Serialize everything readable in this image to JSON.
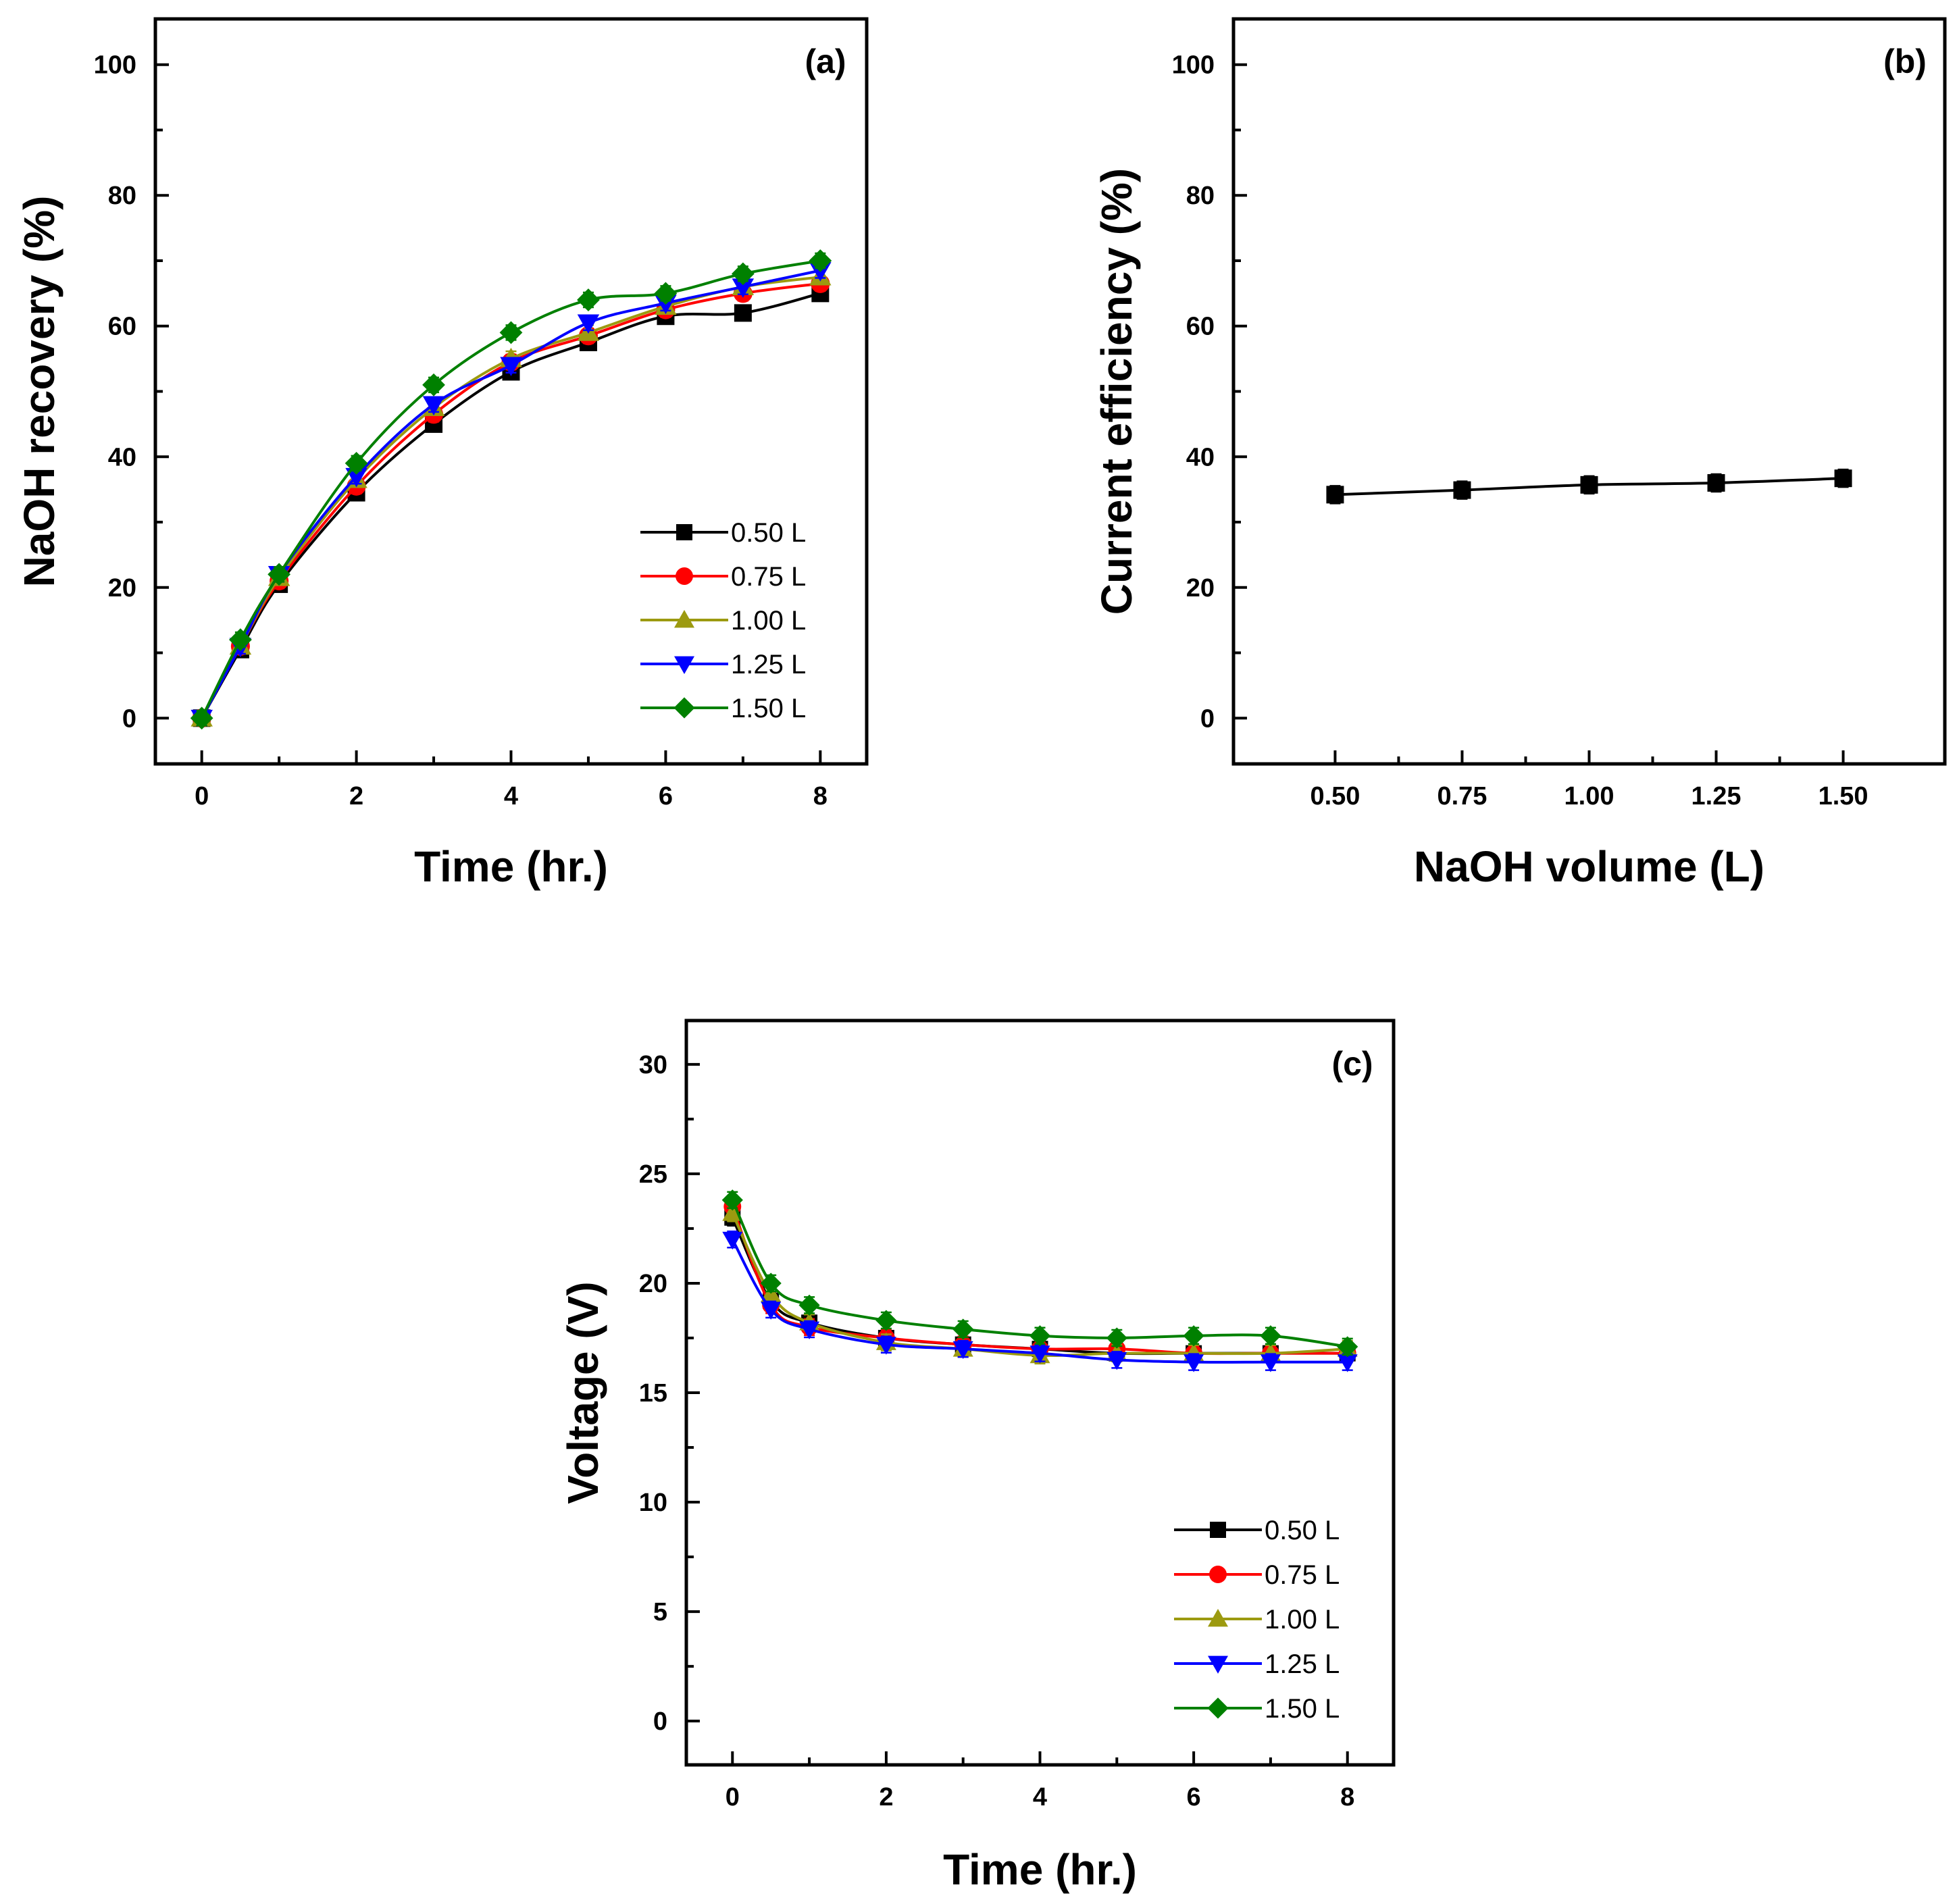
{
  "chart_data": [
    {
      "type": "line",
      "panel_label": "(a)",
      "xlabel": "Time (hr.)",
      "ylabel": "NaOH recovery (%)",
      "xlim": [
        -0.6,
        8.6
      ],
      "ylim": [
        -7,
        107
      ],
      "xticks": [
        0,
        2,
        4,
        6,
        8
      ],
      "xtick_labels": [
        "0",
        "2",
        "4",
        "6",
        "8"
      ],
      "yticks": [
        0,
        20,
        40,
        60,
        80,
        100
      ],
      "ytick_labels": [
        "0",
        "20",
        "40",
        "60",
        "80",
        "100"
      ],
      "x": [
        0,
        0.5,
        1,
        2,
        3,
        4,
        5,
        6,
        7,
        8
      ],
      "legend_position": "bottom-right",
      "series": [
        {
          "name": "0.50 L",
          "color": "#000000",
          "marker": "square",
          "values": [
            0,
            10.5,
            20.5,
            34.5,
            45,
            53,
            57.5,
            61.5,
            62,
            65
          ]
        },
        {
          "name": "0.75 L",
          "color": "#ff0000",
          "marker": "circle",
          "values": [
            0,
            11,
            21,
            35.5,
            46.5,
            54.5,
            58.5,
            62.5,
            65,
            66.5
          ]
        },
        {
          "name": "1.00 L",
          "color": "#9c9a10",
          "marker": "triangle-up",
          "values": [
            0,
            11,
            21.5,
            36.5,
            47.5,
            55,
            59,
            63,
            66,
            67.5
          ]
        },
        {
          "name": "1.25 L",
          "color": "#0000ff",
          "marker": "triangle-down",
          "values": [
            0,
            11,
            22,
            37,
            48,
            54,
            60.5,
            63.5,
            66,
            68.5
          ]
        },
        {
          "name": "1.50 L",
          "color": "#008000",
          "marker": "diamond",
          "values": [
            0,
            12,
            22,
            39,
            51,
            59,
            64,
            65,
            68,
            70
          ]
        }
      ]
    },
    {
      "type": "line",
      "panel_label": "(b)",
      "xlabel": "NaOH volume (L)",
      "ylabel": "Current efficiency (%)",
      "xlim": [
        0.3,
        1.7
      ],
      "ylim": [
        -7,
        107
      ],
      "xticks": [
        0.5,
        0.75,
        1.0,
        1.25,
        1.5
      ],
      "xtick_labels": [
        "0.50",
        "0.75",
        "1.00",
        "1.25",
        "1.50"
      ],
      "yticks": [
        0,
        20,
        40,
        60,
        80,
        100
      ],
      "ytick_labels": [
        "0",
        "20",
        "40",
        "60",
        "80",
        "100"
      ],
      "x": [
        0.5,
        0.75,
        1.0,
        1.25,
        1.5
      ],
      "series": [
        {
          "name": "Current efficiency",
          "color": "#000000",
          "marker": "square",
          "values": [
            34.2,
            34.9,
            35.7,
            36.0,
            36.7
          ]
        }
      ]
    },
    {
      "type": "line",
      "panel_label": "(c)",
      "xlabel": "Time (hr.)",
      "ylabel": "Voltage (V)",
      "xlim": [
        -0.6,
        8.6
      ],
      "ylim": [
        -2,
        32
      ],
      "xticks": [
        0,
        2,
        4,
        6,
        8
      ],
      "xtick_labels": [
        "0",
        "2",
        "4",
        "6",
        "8"
      ],
      "yticks": [
        0,
        5,
        10,
        15,
        20,
        25,
        30
      ],
      "ytick_labels": [
        "0",
        "5",
        "10",
        "15",
        "20",
        "25",
        "30"
      ],
      "x": [
        0,
        0.5,
        1,
        2,
        3,
        4,
        5,
        6,
        7,
        8
      ],
      "legend_position": "bottom-right",
      "series": [
        {
          "name": "0.50 L",
          "color": "#000000",
          "marker": "square",
          "values": [
            23.0,
            19.2,
            18.2,
            17.5,
            17.2,
            17.0,
            16.8,
            16.8,
            16.8,
            16.8
          ]
        },
        {
          "name": "0.75 L",
          "color": "#ff0000",
          "marker": "circle",
          "values": [
            23.5,
            19.0,
            18.0,
            17.5,
            17.2,
            17.0,
            17.0,
            16.8,
            16.8,
            16.8
          ]
        },
        {
          "name": "1.00 L",
          "color": "#9c9a10",
          "marker": "triangle-up",
          "values": [
            23.2,
            19.5,
            18.2,
            17.3,
            17.0,
            16.7,
            16.8,
            16.8,
            16.8,
            17.0
          ]
        },
        {
          "name": "1.25 L",
          "color": "#0000ff",
          "marker": "triangle-down",
          "values": [
            22.0,
            18.8,
            17.9,
            17.2,
            17.0,
            16.8,
            16.5,
            16.4,
            16.4,
            16.4
          ]
        },
        {
          "name": "1.50 L",
          "color": "#008000",
          "marker": "diamond",
          "values": [
            23.8,
            20.0,
            19.0,
            18.3,
            17.9,
            17.6,
            17.5,
            17.6,
            17.6,
            17.1
          ]
        }
      ]
    }
  ]
}
